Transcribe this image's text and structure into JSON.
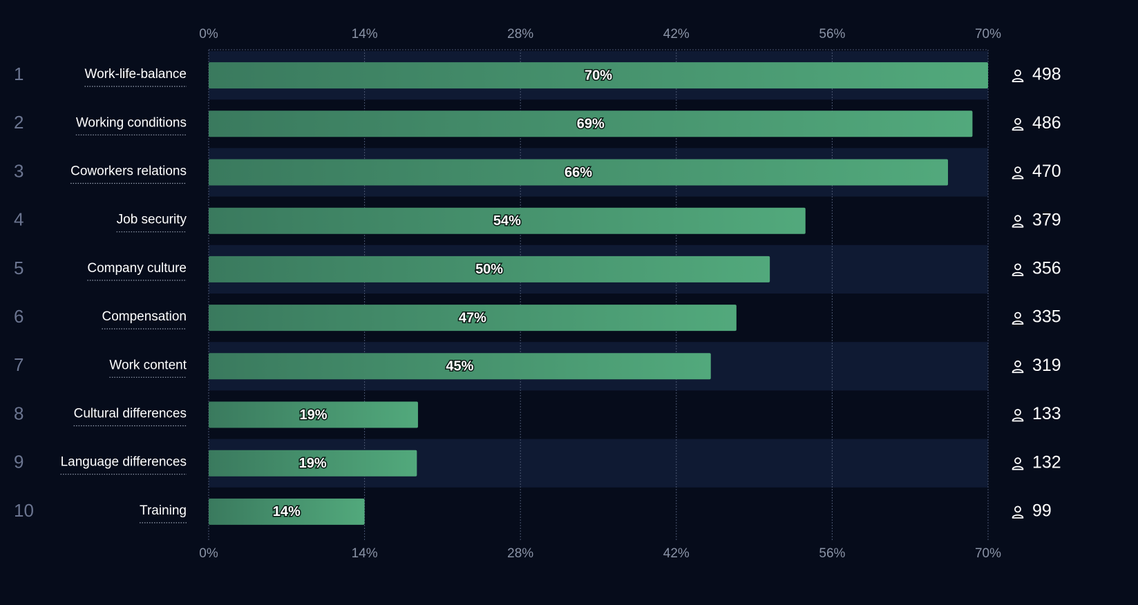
{
  "chart_data": {
    "type": "bar",
    "orientation": "horizontal",
    "ranks": [
      1,
      2,
      3,
      4,
      5,
      6,
      7,
      8,
      9,
      10
    ],
    "categories": [
      "Work-life-balance",
      "Working conditions",
      "Coworkers relations",
      "Job security",
      "Company culture",
      "Compensation",
      "Work content",
      "Cultural differences",
      "Language differences",
      "Training"
    ],
    "values": [
      70,
      68.6,
      66.4,
      53.6,
      50.4,
      47.4,
      45.1,
      18.8,
      18.7,
      14.0
    ],
    "value_labels": [
      "70%",
      "69%",
      "66%",
      "54%",
      "50%",
      "47%",
      "45%",
      "19%",
      "19%",
      "14%"
    ],
    "counts": [
      498,
      486,
      470,
      379,
      356,
      335,
      319,
      133,
      132,
      99
    ],
    "color": [
      "#3a7a5e",
      "#52a97c"
    ],
    "xlim": [
      0,
      70
    ],
    "xticks": [
      {
        "value": 0,
        "label": "0%"
      },
      {
        "value": 14,
        "label": "14%"
      },
      {
        "value": 28,
        "label": "28%"
      },
      {
        "value": 42,
        "label": "42%"
      },
      {
        "value": 56,
        "label": "56%"
      },
      {
        "value": 70,
        "label": "70%"
      }
    ],
    "grid": true
  }
}
